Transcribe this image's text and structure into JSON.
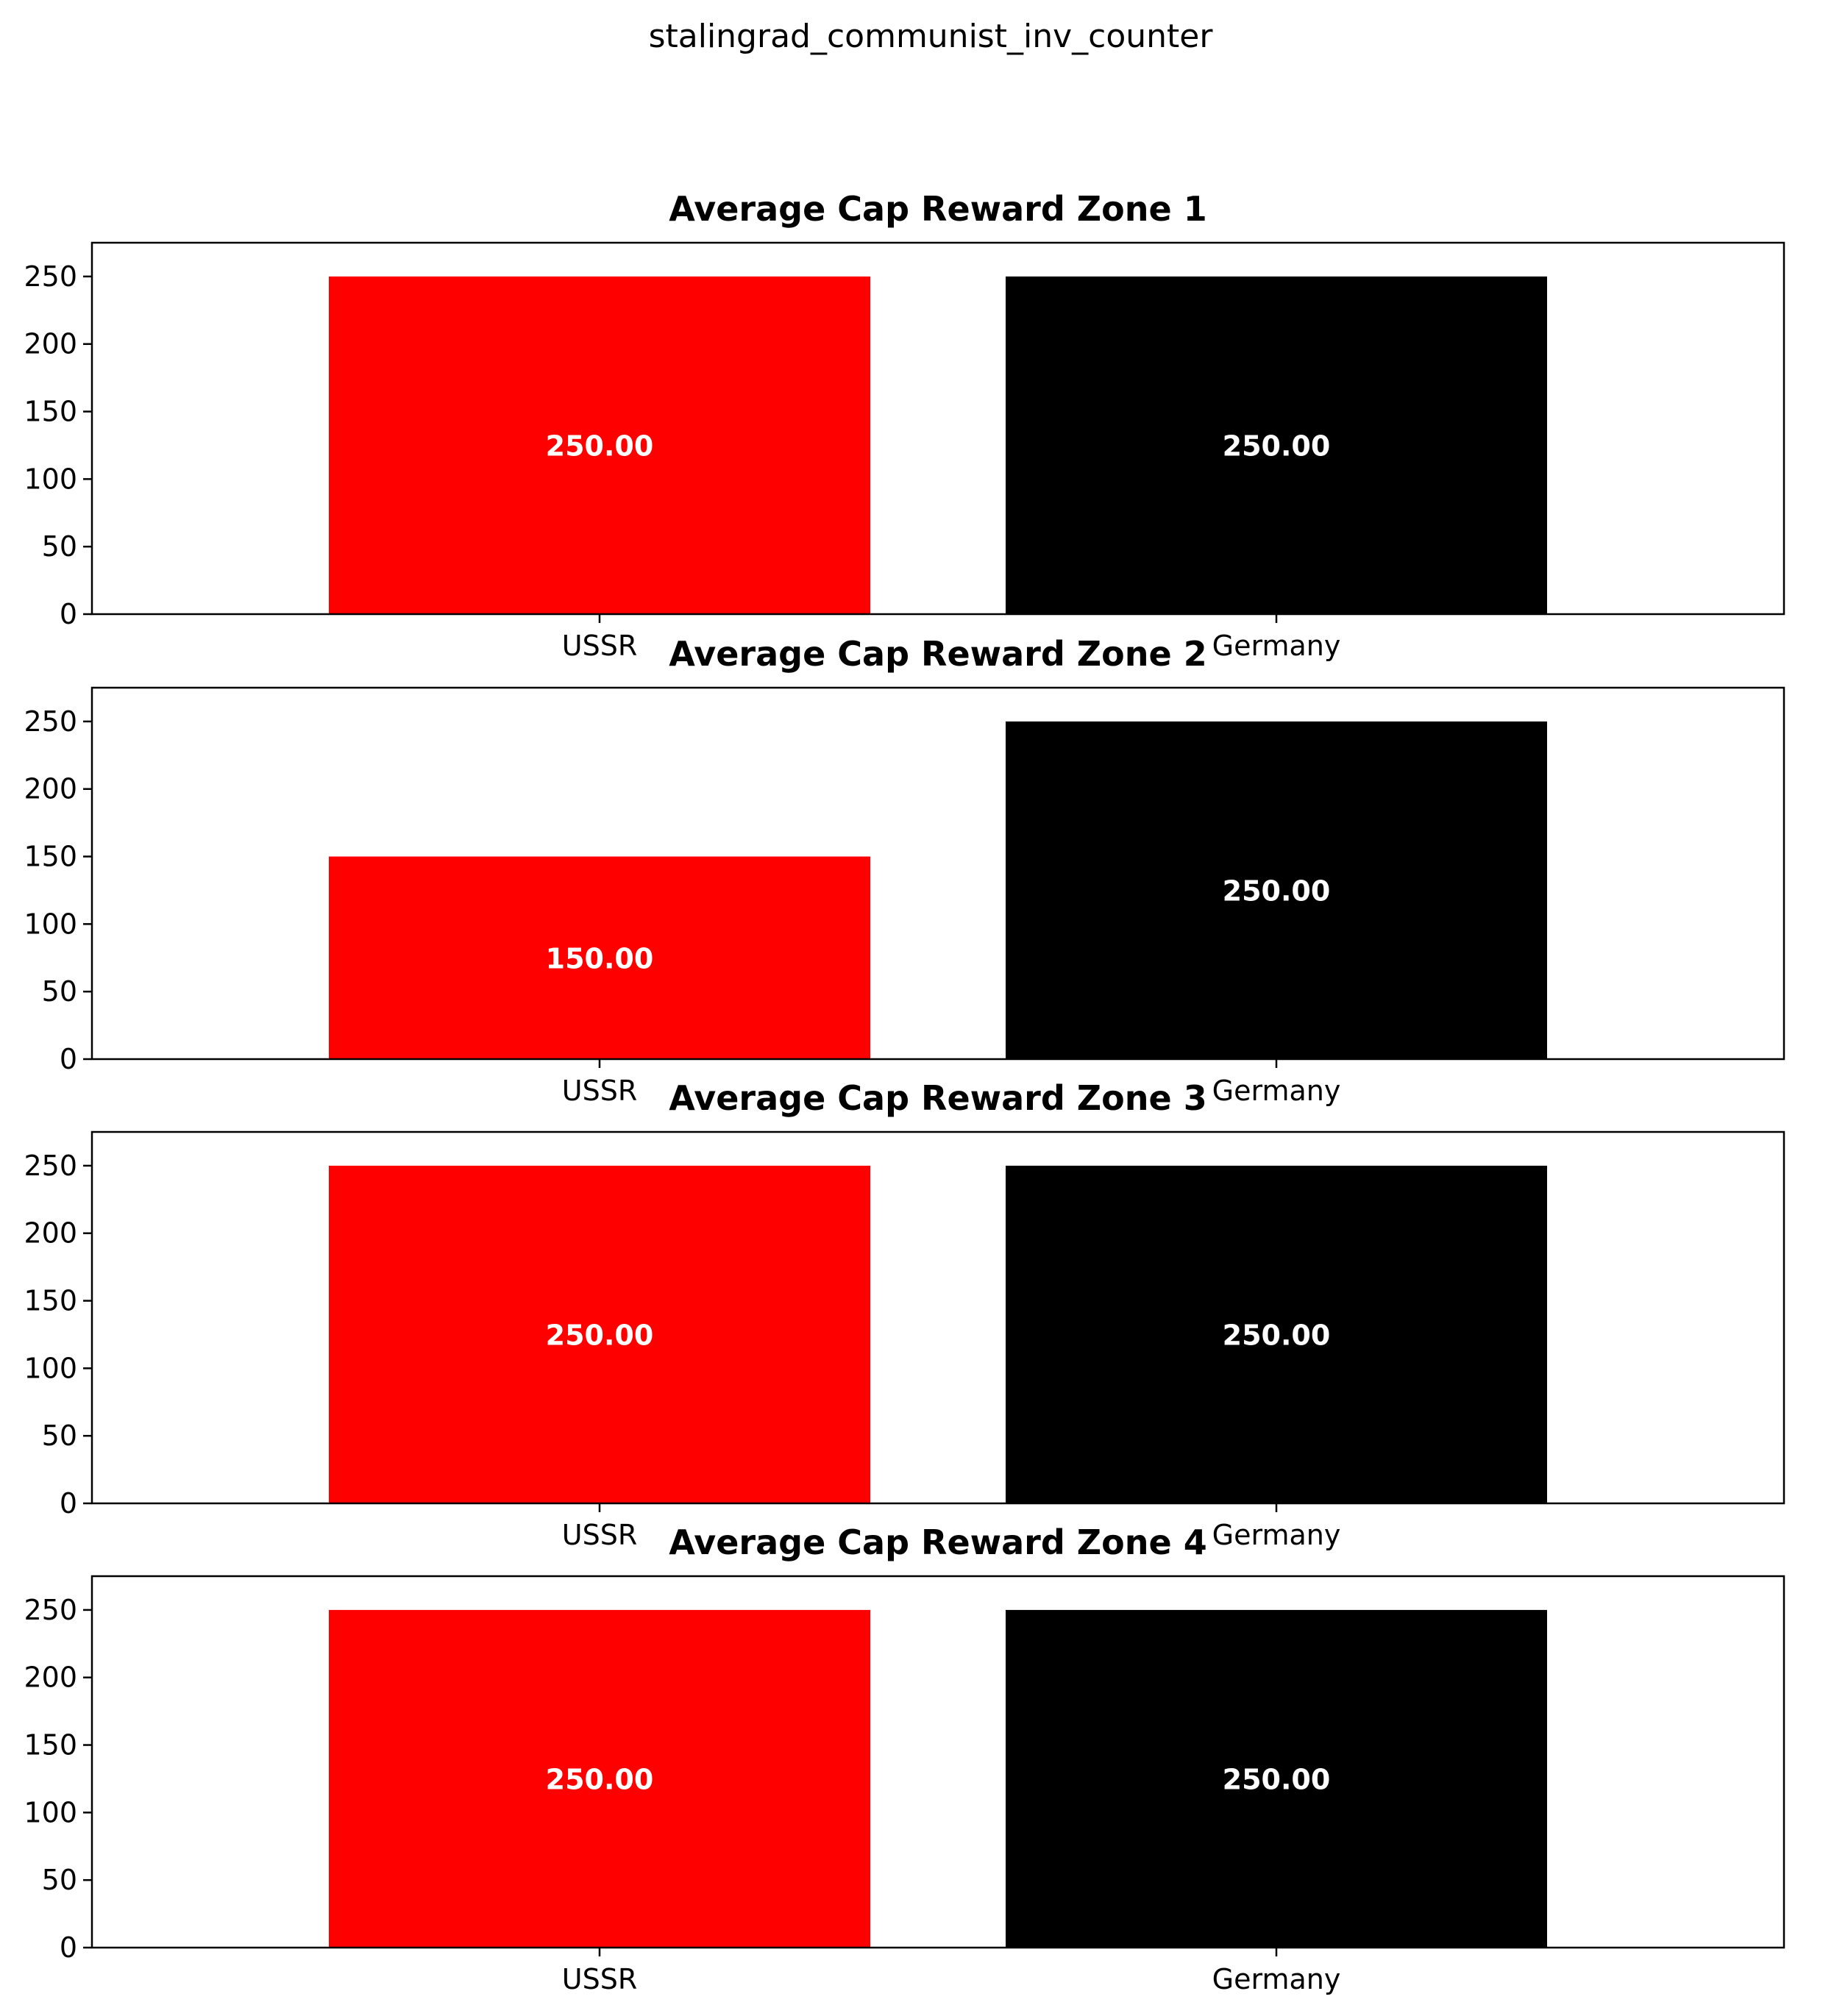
{
  "figure": {
    "suptitle": "stalingrad_communist_inv_counter"
  },
  "chart_data": [
    {
      "type": "bar",
      "title": "Average Cap Reward Zone 1",
      "categories": [
        "USSR",
        "Germany"
      ],
      "values": [
        250,
        250
      ],
      "value_labels": [
        "250.00",
        "250.00"
      ],
      "colors": [
        "#ff0000",
        "#000000"
      ],
      "ylim": [
        0,
        275
      ],
      "yticks": [
        0,
        50,
        100,
        150,
        200,
        250
      ],
      "xlabel": "",
      "ylabel": ""
    },
    {
      "type": "bar",
      "title": "Average Cap Reward Zone 2",
      "categories": [
        "USSR",
        "Germany"
      ],
      "values": [
        150,
        250
      ],
      "value_labels": [
        "150.00",
        "250.00"
      ],
      "colors": [
        "#ff0000",
        "#000000"
      ],
      "ylim": [
        0,
        275
      ],
      "yticks": [
        0,
        50,
        100,
        150,
        200,
        250
      ],
      "xlabel": "",
      "ylabel": ""
    },
    {
      "type": "bar",
      "title": "Average Cap Reward Zone 3",
      "categories": [
        "USSR",
        "Germany"
      ],
      "values": [
        250,
        250
      ],
      "value_labels": [
        "250.00",
        "250.00"
      ],
      "colors": [
        "#ff0000",
        "#000000"
      ],
      "ylim": [
        0,
        275
      ],
      "yticks": [
        0,
        50,
        100,
        150,
        200,
        250
      ],
      "xlabel": "",
      "ylabel": ""
    },
    {
      "type": "bar",
      "title": "Average Cap Reward Zone 4",
      "categories": [
        "USSR",
        "Germany"
      ],
      "values": [
        250,
        250
      ],
      "value_labels": [
        "250.00",
        "250.00"
      ],
      "colors": [
        "#ff0000",
        "#000000"
      ],
      "ylim": [
        0,
        275
      ],
      "yticks": [
        0,
        50,
        100,
        150,
        200,
        250
      ],
      "xlabel": "",
      "ylabel": ""
    }
  ]
}
